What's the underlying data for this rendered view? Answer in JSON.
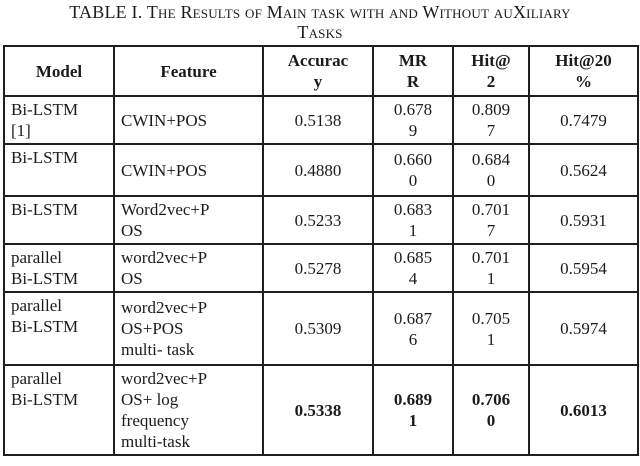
{
  "title": {
    "text": "TABLE I. The Results of Main task with and Without auXiliary\nTasks"
  },
  "table": {
    "border_color": "#1f1f1f",
    "columns": [
      {
        "key": "model",
        "label": "Model"
      },
      {
        "key": "feature",
        "label": "Feature"
      },
      {
        "key": "accuracy",
        "label": "Accurac\ny"
      },
      {
        "key": "mrr",
        "label": "MR\nR"
      },
      {
        "key": "hit2",
        "label": "Hit@\n2"
      },
      {
        "key": "hit20",
        "label": "Hit@20\n%"
      }
    ],
    "rows": [
      {
        "model": "Bi-LSTM\n[1]",
        "feature": "CWIN+POS",
        "accuracy": "0.5138",
        "mrr": "0.678\n9",
        "hit2": "0.809\n7",
        "hit20": "0.7479",
        "bold_values": false
      },
      {
        "model": "Bi-LSTM",
        "feature": "CWIN+POS",
        "accuracy": "0.4880",
        "mrr": "0.660\n0",
        "hit2": "0.684\n0",
        "hit20": "0.5624",
        "bold_values": false
      },
      {
        "model": "Bi-LSTM",
        "feature": "Word2vec+P\nOS",
        "accuracy": "0.5233",
        "mrr": "0.683\n1",
        "hit2": "0.701\n7",
        "hit20": "0.5931",
        "bold_values": false
      },
      {
        "model": "parallel\nBi-LSTM",
        "feature": "word2vec+P\nOS",
        "accuracy": "0.5278",
        "mrr": "0.685\n4",
        "hit2": "0.701\n1",
        "hit20": "0.5954",
        "bold_values": false
      },
      {
        "model": "parallel\nBi-LSTM",
        "feature": "word2vec+P\nOS+POS\nmulti- task",
        "accuracy": "0.5309",
        "mrr": "0.687\n6",
        "hit2": "0.705\n1",
        "hit20": "0.5974",
        "bold_values": false
      },
      {
        "model": "parallel\nBi-LSTM",
        "feature": "word2vec+P\nOS+ log\nfrequency\nmulti-task",
        "accuracy": "0.5338",
        "mrr": "0.689\n1",
        "hit2": "0.706\n0",
        "hit20": "0.6013",
        "bold_values": true
      }
    ]
  }
}
